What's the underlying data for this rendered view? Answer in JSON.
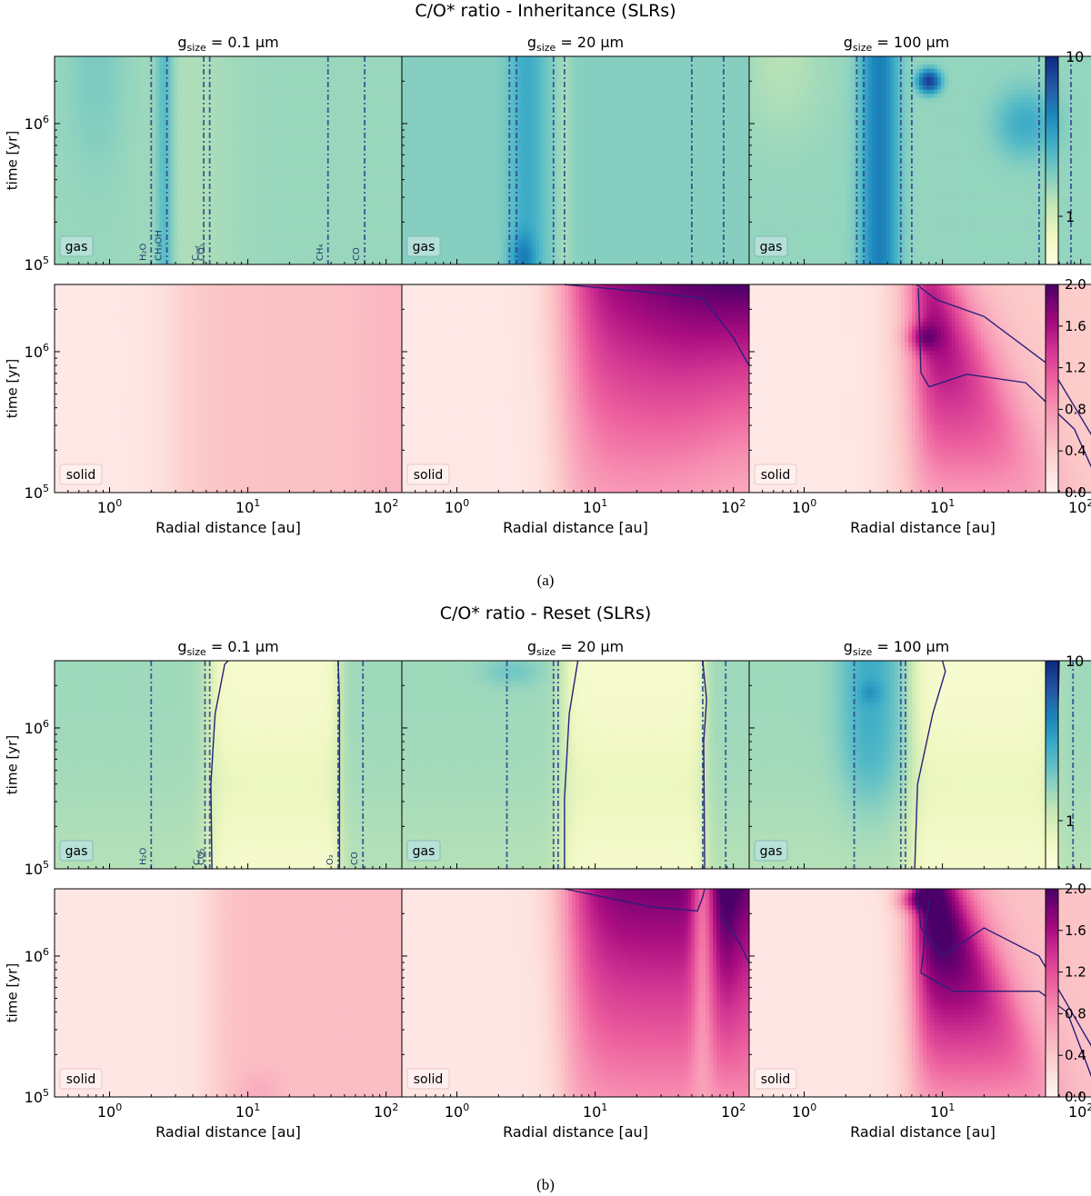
{
  "chart_data": [
    {
      "type": "heatmap",
      "figure": "a",
      "title": "C/O* ratio - Inheritance (SLRs)",
      "caption": "(a)",
      "panel_titles": [
        "g$size = 0.1 μm",
        "g$size = 20 μm",
        "g$size = 100 μm"
      ],
      "xlabel": "Radial distance [au]",
      "ylabel": "time [yr]",
      "xscale": "log",
      "yscale": "log",
      "xlim": [
        0.4,
        130
      ],
      "ylim": [
        100000,
        3000000
      ],
      "x_ticks": [
        "10^0",
        "10^1",
        "10^2"
      ],
      "y_ticks": [
        "10^5",
        "10^6"
      ],
      "rows": [
        "gas",
        "solid"
      ],
      "gas_colorbar": {
        "scale": "log",
        "range": [
          0.5,
          10
        ],
        "ticks": [
          "1",
          "10"
        ],
        "colors": [
          "#ffffcc",
          "#ecf6b9",
          "#c7e9b4",
          "#7fcdbb",
          "#41b6c4",
          "#1d91c0",
          "#225ea8",
          "#0c2c84"
        ]
      },
      "solid_colorbar": {
        "scale": "linear",
        "range": [
          0.0,
          2.0
        ],
        "ticks": [
          "0.0",
          "0.4",
          "0.8",
          "1.2",
          "1.6",
          "2.0"
        ],
        "colors": [
          "#fff1ef",
          "#fcc5c0",
          "#f768a1",
          "#dd3497",
          "#ae017e",
          "#7a0177",
          "#49006a"
        ]
      },
      "snowlines": [
        {
          "species": "H2O",
          "x": [
            2.0,
            2.4,
            2.4
          ]
        },
        {
          "species": "CH3OH",
          "x": [
            2.6,
            2.7,
            2.7
          ]
        },
        {
          "species": "Cref",
          "x": [
            4.8,
            5.0,
            5.0
          ]
        },
        {
          "species": "CO2",
          "x": [
            5.3,
            6.0,
            6.0
          ]
        },
        {
          "species": "CH4",
          "x": [
            38,
            50,
            50
          ]
        },
        {
          "species": "CO",
          "x": [
            70,
            85,
            85
          ]
        }
      ],
      "snowline_labels": [
        "H₂O",
        "CH₃OH",
        "Cref",
        "CO₂",
        "CH₄",
        "CO"
      ],
      "gas_values_description": "C/O* ~ 1.3-2.5 almost everywhere; elevated (~3-5) between H2O and CO2 snowlines, peaking ~8 near 8 au for 100 μm grains",
      "solid_values_description": "0.1 μm: ~0.15 inside 3 au, ~0.45 beyond; 20 μm and 100 μm: rising to ~1.0-2.0 beyond ~6 au at late times"
    },
    {
      "type": "heatmap",
      "figure": "b",
      "title": "C/O* ratio - Reset (SLRs)",
      "caption": "(b)",
      "panel_titles": [
        "g$size = 0.1 μm",
        "g$size = 20 μm",
        "g$size = 100 μm"
      ],
      "xlabel": "Radial distance [au]",
      "ylabel": "time [yr]",
      "xscale": "log",
      "yscale": "log",
      "xlim": [
        0.4,
        130
      ],
      "ylim": [
        100000,
        3000000
      ],
      "x_ticks": [
        "10^0",
        "10^1",
        "10^2"
      ],
      "y_ticks": [
        "10^5",
        "10^6"
      ],
      "rows": [
        "gas",
        "solid"
      ],
      "gas_colorbar": {
        "scale": "log",
        "range": [
          0.5,
          10
        ],
        "ticks": [
          "1",
          "10"
        ]
      },
      "solid_colorbar": {
        "scale": "linear",
        "range": [
          0.0,
          2.0
        ],
        "ticks": [
          "0.0",
          "0.4",
          "0.8",
          "1.2",
          "1.6",
          "2.0"
        ]
      },
      "snowlines": [
        {
          "species": "H2O",
          "x": [
            2.0,
            2.3,
            2.3
          ]
        },
        {
          "species": "Cref",
          "x": [
            4.9,
            5.0,
            5.0
          ]
        },
        {
          "species": "CO2",
          "x": [
            5.3,
            5.4,
            5.4
          ]
        },
        {
          "species": "O2",
          "x": [
            45,
            60,
            58
          ]
        },
        {
          "species": "CO",
          "x": [
            68,
            88,
            88
          ]
        }
      ],
      "snowline_labels": [
        "H₂O",
        "Cref",
        "CO₂",
        "O₂",
        "CO"
      ],
      "gas_values_description": "C/O* ~ 1-1.5 inside 5 au and beyond 50 au; <1 (~0.6-0.8) between CO2 and O2 snowlines; ~2-3 near 3-8 au at late times for 100 μm",
      "solid_values_description": "0.1 μm: ~0.15 inside 5 au, ~0.5-0.6 beyond; 20 μm and 100 μm: rising to 1.2-2.0 beyond ~6 au at late times"
    }
  ],
  "label_gas": "gas",
  "label_solid": "solid",
  "label_sub": "size",
  "label_ref_sub": "ref"
}
